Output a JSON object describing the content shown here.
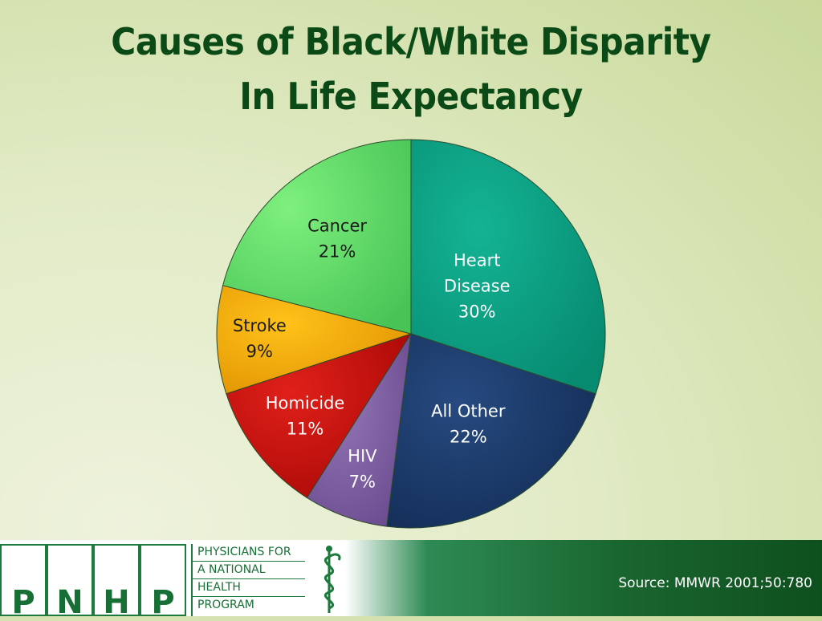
{
  "title": {
    "line1": "Causes of Black/White Disparity",
    "line2": "In Life Expectancy"
  },
  "chart_data": {
    "type": "pie",
    "slices": [
      {
        "label": "Heart Disease",
        "value": 30,
        "pct_label": "30%",
        "color": "#0a9c80"
      },
      {
        "label": "All Other",
        "value": 22,
        "pct_label": "22%",
        "color": "#1c3a68"
      },
      {
        "label": "HIV",
        "value": 7,
        "pct_label": "7%",
        "color": "#7e5ca0"
      },
      {
        "label": "Homicide",
        "value": 11,
        "pct_label": "11%",
        "color": "#c8100e"
      },
      {
        "label": "Stroke",
        "value": 9,
        "pct_label": "9%",
        "color": "#f2a800"
      },
      {
        "label": "Cancer",
        "value": 21,
        "pct_label": "21%",
        "color": "#5fd86a"
      }
    ]
  },
  "footer": {
    "logo_letters": [
      "P",
      "N",
      "H",
      "P"
    ],
    "logo_text_lines": [
      "PHYSICIANS FOR",
      "A NATIONAL",
      "HEALTH",
      "PROGRAM"
    ],
    "source": "Source: MMWR 2001;50:780"
  },
  "colors": {
    "title": "#0b4a16",
    "brand_green": "#1c7a3c"
  }
}
